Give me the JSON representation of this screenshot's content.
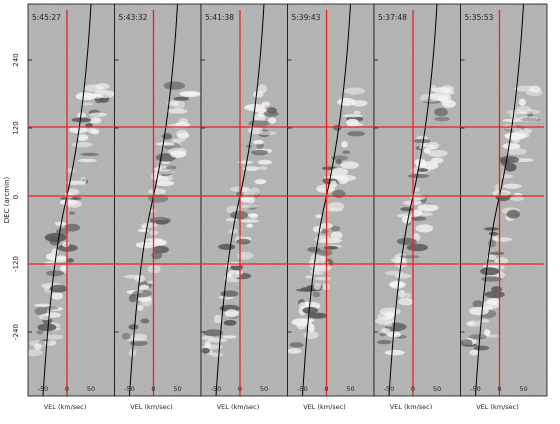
{
  "figure": {
    "y_axis_label": "DEC (arcmin)",
    "y_ticks": [
      "240",
      "120",
      "0",
      "-120",
      "-240"
    ],
    "panels": [
      {
        "time": "5:45:27",
        "x_axis_label": "VEL (km/sec)",
        "x_ticks": [
          "-50",
          "0",
          "50"
        ]
      },
      {
        "time": "5:43:32",
        "x_axis_label": "VEL (km/sec)",
        "x_ticks": [
          "-50",
          "0",
          "50"
        ]
      },
      {
        "time": "5:41:38",
        "x_axis_label": "VEL (km/sec)",
        "x_ticks": [
          "-50",
          "0",
          "50"
        ]
      },
      {
        "time": "5:39:43",
        "x_axis_label": "VEL (km/sec)",
        "x_ticks": [
          "-50",
          "0",
          "50"
        ]
      },
      {
        "time": "5:37:48",
        "x_axis_label": "VEL (km/sec)",
        "x_ticks": [
          "-50",
          "0",
          "50"
        ]
      },
      {
        "time": "5:35:53",
        "x_axis_label": "VEL (km/sec)",
        "x_ticks": [
          "-50",
          "0",
          "50"
        ]
      }
    ]
  },
  "colors": {
    "background_gray": "#b2b2b2",
    "reference_line_red": "#e8231f",
    "curve_black": "#000000"
  }
}
